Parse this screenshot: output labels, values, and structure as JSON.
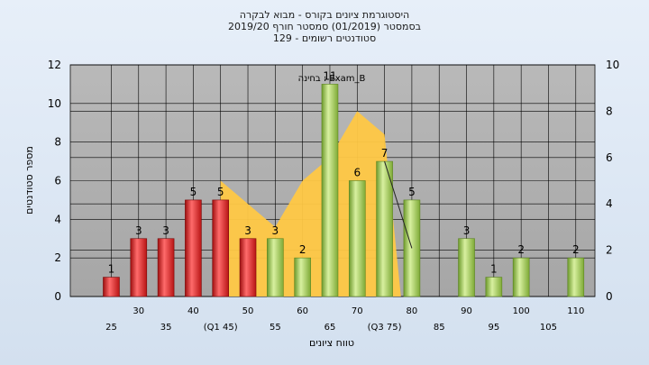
{
  "chart_data": {
    "type": "bar",
    "title": "היסטוגרמת ציונים בקורס - מבוא לבקרה",
    "subtitle": "בסמסטר  (01/2019)  סמסטר חורף  2019/20",
    "subtitle2": "סטודנטים רשומים - 129",
    "annotation": "בחינה : Exam_B",
    "xlabel": "טווח ציונים",
    "ylabel": "מספר סטודנטים",
    "ylim": [
      0,
      12
    ],
    "y2lim": [
      0,
      10
    ],
    "yticks": [
      "0",
      "2",
      "4",
      "6",
      "8",
      "10",
      "12"
    ],
    "y2ticks": [
      "0",
      "2",
      "4",
      "6",
      "8",
      "10"
    ],
    "grid": true,
    "x_labels_row1": [
      "30",
      "40",
      "50",
      "60",
      "70",
      "80",
      "90",
      "100",
      "110"
    ],
    "x_labels_row2": [
      "25",
      "35",
      "(Q1 45)",
      "55",
      "65",
      "(Q3 75)",
      "85",
      "95",
      "105"
    ],
    "bars": [
      {
        "x": 25,
        "value": 1,
        "color": "red",
        "label": "1"
      },
      {
        "x": 30,
        "value": 3,
        "color": "red",
        "label": "3"
      },
      {
        "x": 35,
        "value": 3,
        "color": "red",
        "label": "3"
      },
      {
        "x": 40,
        "value": 5,
        "color": "red",
        "label": "5"
      },
      {
        "x": 45,
        "value": 5,
        "color": "red",
        "label": "5"
      },
      {
        "x": 50,
        "value": 3,
        "color": "red",
        "label": "3"
      },
      {
        "x": 55,
        "value": 3,
        "color": "green",
        "label": "3"
      },
      {
        "x": 60,
        "value": 2,
        "color": "green",
        "label": "2"
      },
      {
        "x": 65,
        "value": 11,
        "color": "green",
        "label": "11"
      },
      {
        "x": 70,
        "value": 6,
        "color": "green",
        "label": "6"
      },
      {
        "x": 75,
        "value": 7,
        "color": "green",
        "label": "7"
      },
      {
        "x": 80,
        "value": 5,
        "color": "green",
        "label": "5"
      },
      {
        "x": 90,
        "value": 3,
        "color": "green",
        "label": "3"
      },
      {
        "x": 95,
        "value": 1,
        "color": "green",
        "label": "1"
      },
      {
        "x": 100,
        "value": 2,
        "color": "green",
        "label": "2"
      },
      {
        "x": 110,
        "value": 2,
        "color": "green",
        "label": "2"
      }
    ],
    "area_series": {
      "x": [
        45,
        50,
        55,
        60,
        65,
        70,
        75,
        78
      ],
      "values": [
        5,
        4,
        3,
        5,
        6,
        8,
        7,
        0
      ]
    },
    "line_series": {
      "x": [
        75,
        80
      ],
      "values": [
        7,
        2.5
      ]
    }
  }
}
